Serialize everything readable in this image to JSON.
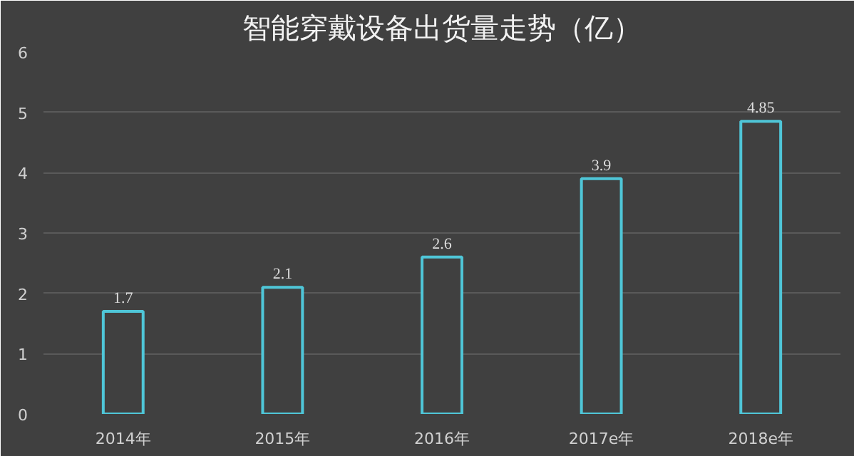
{
  "chart_data": {
    "type": "bar",
    "title": "智能穿戴设备出货量走势（亿）",
    "categories": [
      "2014年",
      "2015年",
      "2016年",
      "2017e年",
      "2018e年"
    ],
    "values": [
      1.7,
      2.1,
      2.6,
      3.9,
      4.85
    ],
    "color": "#4fc6d8",
    "ylim": [
      0,
      6
    ],
    "yticks": [
      0,
      1,
      2,
      3,
      4,
      5,
      6
    ],
    "grid": "y",
    "data_labels": true
  }
}
